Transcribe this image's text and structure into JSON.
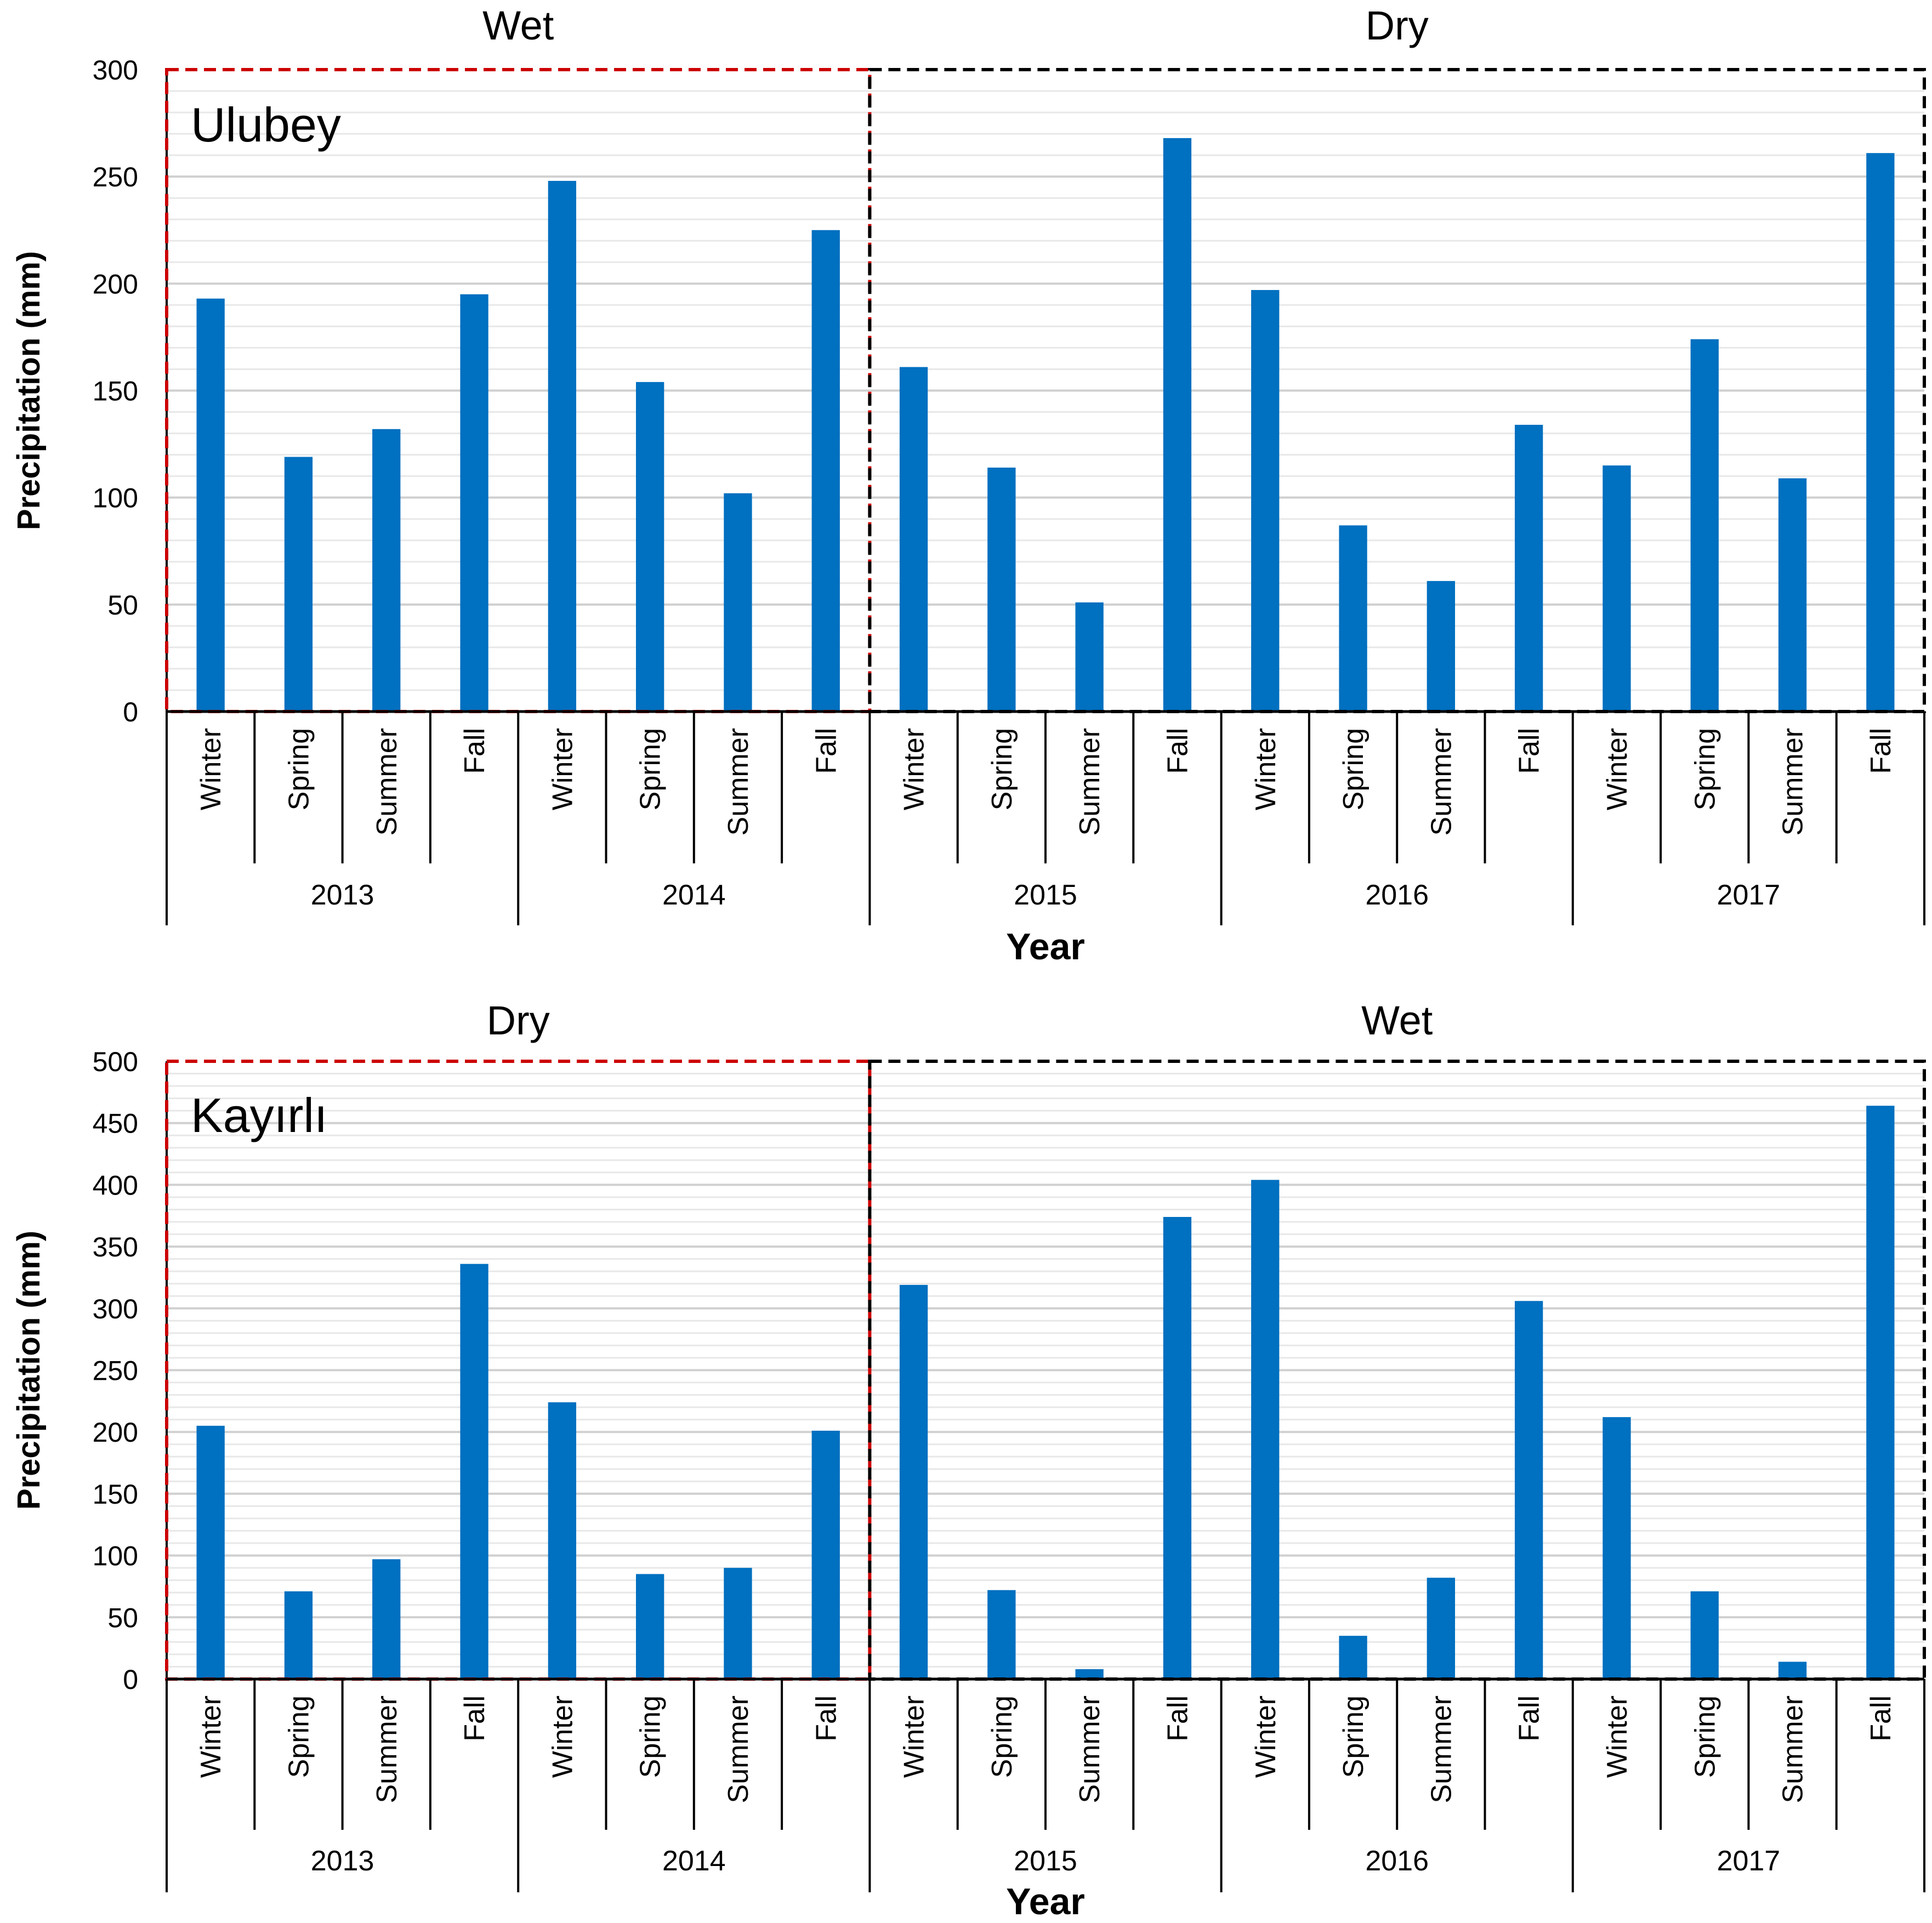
{
  "chart_data": [
    {
      "type": "bar",
      "title": "Ulubey",
      "xlabel": "Year",
      "ylabel": "Precipitation (mm)",
      "ylim": [
        0,
        300
      ],
      "yticks": [
        0,
        50,
        100,
        150,
        200,
        250,
        300
      ],
      "years": [
        "2013",
        "2014",
        "2015",
        "2016",
        "2017"
      ],
      "categories": [
        "Winter",
        "Spring",
        "Summer",
        "Fall",
        "Winter",
        "Spring",
        "Summer",
        "Fall",
        "Winter",
        "Spring",
        "Summer",
        "Fall",
        "Winter",
        "Spring",
        "Summer",
        "Fall",
        "Winter",
        "Spring",
        "Summer",
        "Fall"
      ],
      "values": [
        193,
        119,
        132,
        195,
        248,
        154,
        102,
        225,
        161,
        114,
        51,
        268,
        197,
        87,
        61,
        134,
        115,
        174,
        109,
        261
      ],
      "regions": [
        {
          "label": "Wet",
          "from_year": "2013",
          "to_year": "2014",
          "color": "#cc0000"
        },
        {
          "label": "Dry",
          "from_year": "2015",
          "to_year": "2017",
          "color": "#000000"
        }
      ],
      "bar_color": "#0070c0",
      "grid": true
    },
    {
      "type": "bar",
      "title": "Kayırlı",
      "xlabel": "Year",
      "ylabel": "Precipitation (mm)",
      "ylim": [
        0,
        500
      ],
      "yticks": [
        0,
        50,
        100,
        150,
        200,
        250,
        300,
        350,
        400,
        450,
        500
      ],
      "years": [
        "2013",
        "2014",
        "2015",
        "2016",
        "2017"
      ],
      "categories": [
        "Winter",
        "Spring",
        "Summer",
        "Fall",
        "Winter",
        "Spring",
        "Summer",
        "Fall",
        "Winter",
        "Spring",
        "Summer",
        "Fall",
        "Winter",
        "Spring",
        "Summer",
        "Fall",
        "Winter",
        "Spring",
        "Summer",
        "Fall"
      ],
      "values": [
        205,
        71,
        97,
        336,
        224,
        85,
        90,
        201,
        319,
        72,
        8,
        374,
        404,
        35,
        82,
        306,
        212,
        71,
        14,
        464
      ],
      "regions": [
        {
          "label": "Dry",
          "from_year": "2013",
          "to_year": "2014",
          "color": "#cc0000"
        },
        {
          "label": "Wet",
          "from_year": "2015",
          "to_year": "2017",
          "color": "#000000"
        }
      ],
      "bar_color": "#0070c0",
      "grid": true
    }
  ]
}
